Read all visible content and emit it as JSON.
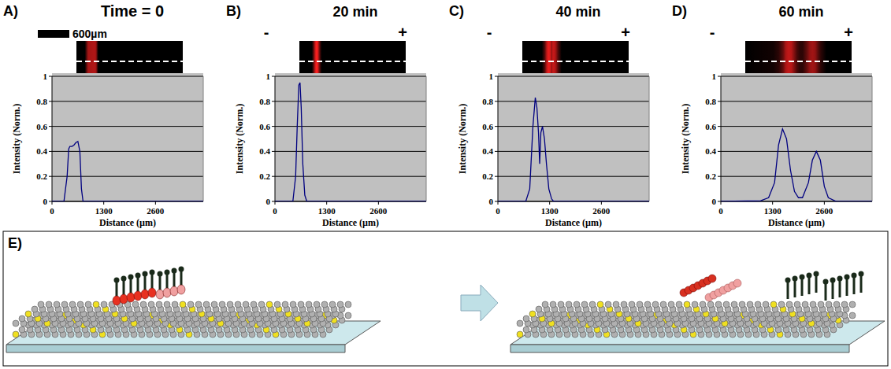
{
  "chart_data": [
    {
      "type": "line",
      "panel": "A)",
      "title": "Time = 0",
      "annotations": [
        "600µm"
      ],
      "x_label": "Distance (µm)",
      "y_label": "Intensity (Norm.)",
      "x": [
        0,
        300,
        380,
        420,
        450,
        500,
        550,
        600,
        650,
        700,
        740,
        780,
        1300,
        2600,
        3800
      ],
      "values": [
        0,
        0,
        0.2,
        0.42,
        0.44,
        0.44,
        0.45,
        0.47,
        0.48,
        0.4,
        0.1,
        0,
        0,
        0,
        0
      ],
      "color": "#000080",
      "xlim": [
        0,
        3800
      ],
      "xticks": [
        0,
        1300,
        2600
      ],
      "ylim": [
        0,
        1
      ],
      "yticks": [
        0,
        0.2,
        0.4,
        0.6,
        0.8,
        1
      ],
      "grid": true
    },
    {
      "type": "line",
      "panel": "B)",
      "title": "20 min",
      "annotations": [
        "-",
        "+"
      ],
      "x_label": "Distance (µm)",
      "y_label": "Intensity (Norm.)",
      "x": [
        0,
        450,
        520,
        560,
        600,
        630,
        660,
        700,
        750,
        800,
        3800
      ],
      "values": [
        0,
        0,
        0.2,
        0.6,
        0.93,
        0.95,
        0.75,
        0.3,
        0.05,
        0,
        0
      ],
      "color": "#000080",
      "xlim": [
        0,
        3800
      ],
      "xticks": [
        0,
        1300,
        2600
      ],
      "ylim": [
        0,
        1
      ],
      "yticks": [
        0,
        0.2,
        0.4,
        0.6,
        0.8,
        1
      ],
      "grid": true
    },
    {
      "type": "line",
      "panel": "C)",
      "title": "40 min",
      "annotations": [
        "-",
        "+"
      ],
      "x_label": "Distance (µm)",
      "y_label": "Intensity (Norm.)",
      "x": [
        0,
        700,
        800,
        880,
        940,
        980,
        1020,
        1050,
        1080,
        1120,
        1170,
        1220,
        1280,
        1350,
        1400,
        3800
      ],
      "values": [
        0,
        0,
        0.1,
        0.6,
        0.83,
        0.75,
        0.55,
        0.3,
        0.55,
        0.6,
        0.5,
        0.3,
        0.1,
        0.02,
        0,
        0
      ],
      "color": "#000080",
      "xlim": [
        0,
        3800
      ],
      "xticks": [
        0,
        1300,
        2600
      ],
      "ylim": [
        0,
        1
      ],
      "yticks": [
        0,
        0.2,
        0.4,
        0.6,
        0.8,
        1
      ],
      "grid": true
    },
    {
      "type": "line",
      "panel": "D)",
      "title": "60 min",
      "annotations": [
        "-",
        "+"
      ],
      "x_label": "Distance (µm)",
      "y_label": "Intensity (Norm.)",
      "x": [
        0,
        1000,
        1200,
        1350,
        1450,
        1550,
        1650,
        1750,
        1850,
        1950,
        2050,
        2200,
        2300,
        2400,
        2500,
        2600,
        2700,
        2900,
        3800
      ],
      "values": [
        0,
        0.005,
        0.03,
        0.15,
        0.45,
        0.58,
        0.5,
        0.25,
        0.08,
        0.03,
        0.03,
        0.15,
        0.33,
        0.4,
        0.33,
        0.12,
        0.03,
        0,
        0
      ],
      "color": "#000080",
      "xlim": [
        0,
        3800
      ],
      "xticks": [
        0,
        1300,
        2600
      ],
      "ylim": [
        0,
        1
      ],
      "yticks": [
        0,
        0.2,
        0.4,
        0.6,
        0.8,
        1
      ],
      "grid": true
    }
  ],
  "schematic": {
    "panel": "E)"
  }
}
